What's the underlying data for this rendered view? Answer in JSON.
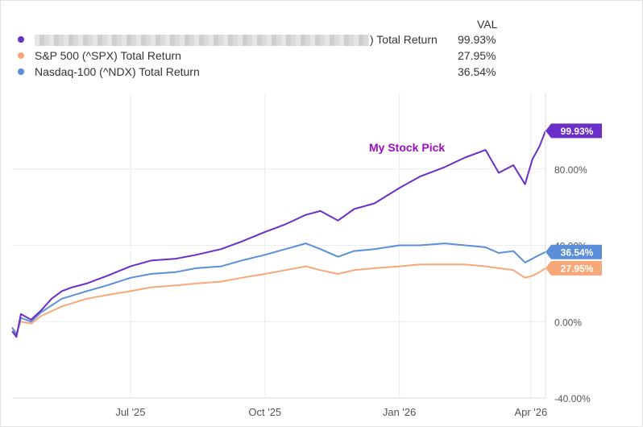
{
  "legend": {
    "column_header": "VAL",
    "items": [
      {
        "name": "",
        "suffix": ") Total Return",
        "value": "99.93%",
        "color": "#6b2fc9",
        "redacted": true
      },
      {
        "name": "S&P 500 (^SPX) Total Return",
        "suffix": "",
        "value": "27.95%",
        "color": "#f8a878",
        "redacted": false
      },
      {
        "name": "Nasdaq-100 (^NDX) Total Return",
        "suffix": "",
        "value": "36.54%",
        "color": "#5b8fd9",
        "redacted": false
      }
    ]
  },
  "annotation": {
    "text": "My Stock Pick",
    "color": "#9b0fc1"
  },
  "chart_data": {
    "type": "line",
    "x_tick_labels": [
      "Jul '25",
      "Oct '25",
      "Jan '26",
      "Apr '26"
    ],
    "x_ticks": [
      "2025-07-01",
      "2025-10-01",
      "2026-01-01",
      "2026-04-01"
    ],
    "x_range": [
      "2025-04-11",
      "2026-04-11"
    ],
    "y_tick_labels": [
      "80.00%",
      "40.00%",
      "0.00%",
      "-40.00%"
    ],
    "y_ticks": [
      80,
      40,
      0,
      -40
    ],
    "ylim": [
      -40,
      120
    ],
    "grid": true,
    "end_labels": [
      "99.93%",
      "36.54%",
      "27.95%"
    ],
    "series": [
      {
        "color": "#6b2fc9",
        "x": [
          "2025-04-11",
          "2025-04-14",
          "2025-04-17",
          "2025-04-24",
          "2025-05-01",
          "2025-05-08",
          "2025-05-15",
          "2025-05-22",
          "2025-06-01",
          "2025-06-15",
          "2025-07-01",
          "2025-07-15",
          "2025-08-01",
          "2025-08-15",
          "2025-09-01",
          "2025-09-15",
          "2025-10-01",
          "2025-10-15",
          "2025-10-29",
          "2025-11-08",
          "2025-11-20",
          "2025-12-01",
          "2025-12-15",
          "2026-01-01",
          "2026-01-15",
          "2026-02-01",
          "2026-02-15",
          "2026-03-01",
          "2026-03-10",
          "2026-03-20",
          "2026-03-28",
          "2026-04-02",
          "2026-04-07",
          "2026-04-11"
        ],
        "values": [
          -5,
          -8,
          4,
          1,
          6,
          12,
          16,
          18,
          20,
          24,
          29,
          32,
          33,
          35,
          38,
          42,
          47,
          51,
          56,
          58,
          53,
          59,
          62,
          70,
          76,
          81,
          86,
          90,
          78,
          82,
          72,
          85,
          92,
          100
        ]
      },
      {
        "color": "#5b8fd9",
        "x": [
          "2025-04-11",
          "2025-04-14",
          "2025-04-17",
          "2025-04-24",
          "2025-05-01",
          "2025-05-15",
          "2025-06-01",
          "2025-06-15",
          "2025-07-01",
          "2025-07-15",
          "2025-08-01",
          "2025-08-15",
          "2025-09-01",
          "2025-09-15",
          "2025-10-01",
          "2025-10-15",
          "2025-10-29",
          "2025-11-08",
          "2025-11-20",
          "2025-12-01",
          "2025-12-15",
          "2026-01-01",
          "2026-01-15",
          "2026-02-01",
          "2026-02-15",
          "2026-03-01",
          "2026-03-10",
          "2026-03-20",
          "2026-03-28",
          "2026-04-02",
          "2026-04-07",
          "2026-04-11"
        ],
        "values": [
          -3,
          -7,
          2,
          0,
          5,
          12,
          16,
          19,
          23,
          25,
          26,
          28,
          29,
          32,
          35,
          38,
          41,
          38,
          34,
          37,
          38,
          40,
          40,
          41,
          40,
          39,
          36,
          37,
          31,
          33,
          35,
          36.5
        ]
      },
      {
        "color": "#f8a878",
        "x": [
          "2025-04-11",
          "2025-04-14",
          "2025-04-17",
          "2025-04-24",
          "2025-05-01",
          "2025-05-15",
          "2025-06-01",
          "2025-06-15",
          "2025-07-01",
          "2025-07-15",
          "2025-08-01",
          "2025-08-15",
          "2025-09-01",
          "2025-09-15",
          "2025-10-01",
          "2025-10-15",
          "2025-10-29",
          "2025-11-08",
          "2025-11-20",
          "2025-12-01",
          "2025-12-15",
          "2026-01-01",
          "2026-01-15",
          "2026-02-01",
          "2026-02-15",
          "2026-03-01",
          "2026-03-10",
          "2026-03-20",
          "2026-03-28",
          "2026-04-02",
          "2026-04-07",
          "2026-04-11"
        ],
        "values": [
          -3,
          -6,
          0,
          -1,
          3,
          8,
          12,
          14,
          16,
          18,
          19,
          20,
          21,
          23,
          25,
          27,
          29,
          27,
          25,
          27,
          28,
          29,
          30,
          30,
          30,
          29,
          28,
          27,
          23,
          24,
          26,
          28
        ]
      }
    ]
  }
}
